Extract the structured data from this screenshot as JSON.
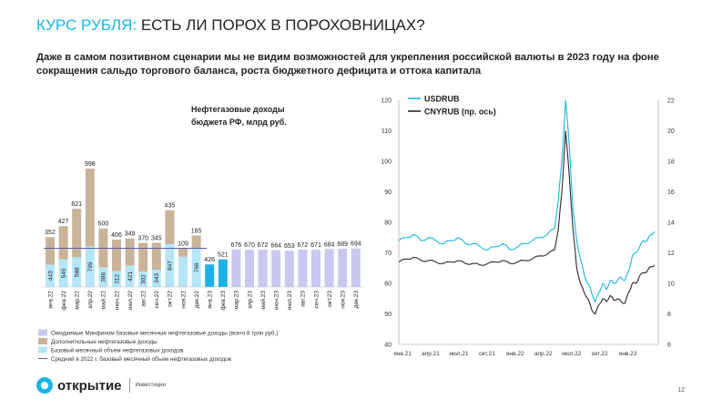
{
  "header": {
    "title_accent": "КУРС РУБЛЯ:",
    "title_rest": " ЕСТЬ ЛИ ПОРОХ В ПОРОХОВНИЦАХ?",
    "subtitle": "Даже в самом позитивном сценарии мы не видим возможностей для укрепления российской валюты в 2023 году на фоне сокращения сальдо торгового баланса, роста бюджетного дефицита и оттока капитала"
  },
  "footer": {
    "brand": "открытие",
    "brand_sub": "Инвестиции",
    "page_number": "12"
  },
  "colors": {
    "base": "#b5e6f8",
    "extra": "#c9b49a",
    "highlight": "#1cb1e4",
    "forecast": "#c8c8f0",
    "avg_line": "#5560a8",
    "usd": "#19b4e6",
    "cny": "#2a2a2a",
    "accent": "#19b4e6"
  },
  "chart_data": [
    {
      "type": "bar",
      "title": "Нефтегазовые доходы бюджета РФ, млрд руб.",
      "categories": [
        "янв.22",
        "фев.22",
        "мар.22",
        "апр.22",
        "май.22",
        "июн.22",
        "июл.22",
        "авг.22",
        "сен.22",
        "окт.22",
        "ноя.22",
        "дек.22",
        "янв.23",
        "фев.23",
        "мар.23",
        "апр.23",
        "май.23",
        "июн.23",
        "июл.23",
        "авг.23",
        "сен.23",
        "окт.23",
        "ноя.23",
        "дек.23"
      ],
      "series": [
        {
          "name": "Базовый месячный объем нефтегазовых доходов",
          "values": [
            443,
            545,
            588,
            799,
            386,
            312,
            421,
            302,
            343,
            847,
            null,
            766,
            null,
            null,
            null,
            null,
            null,
            null,
            null,
            null,
            null,
            null,
            null,
            null
          ],
          "labels": [
            "443",
            "545",
            "588",
            "799",
            "386",
            "312",
            "421",
            "302",
            "343",
            "847",
            "",
            "766",
            "",
            "",
            "",
            "",
            "",
            "",
            "",
            "",
            "",
            "",
            "",
            ""
          ]
        },
        {
          "name": "Дополнительные нефтегазовые доходы",
          "values": [
            null,
            null,
            null,
            null,
            null,
            null,
            null,
            null,
            null,
            null,
            null,
            null,
            null,
            null,
            null,
            null,
            null,
            null,
            null,
            null,
            null,
            null,
            null,
            null
          ]
        },
        {
          "name": "Ожидаемые Минфином базовые месячные нефтегазовые доходы (всего 8 трлн руб.)",
          "values": [
            null,
            null,
            null,
            null,
            null,
            null,
            null,
            null,
            null,
            null,
            null,
            null,
            null,
            null,
            676,
            670,
            672,
            664,
            653,
            672,
            671,
            684,
            689,
            694
          ]
        },
        {
          "name": "Средний в 2022 г. базовый месячный объем нефтегазовых доходов"
        }
      ],
      "totals": [
        352,
        427,
        621,
        998,
        500,
        406,
        349,
        370,
        345,
        435,
        109,
        165,
        426,
        521,
        676,
        670,
        672,
        664,
        653,
        672,
        671,
        684,
        689,
        694
      ],
      "total_labels": [
        "352",
        "427",
        "621",
        "998",
        "500",
        "406",
        "349",
        "370",
        "345",
        "435",
        "109",
        "165",
        "426",
        "521",
        "676",
        "670",
        "672",
        "664",
        "653",
        "672",
        "671",
        "684",
        "689",
        "694"
      ],
      "base_values": [
        443,
        545,
        588,
        799,
        386,
        312,
        421,
        302,
        343,
        847,
        600,
        766,
        426,
        521,
        676,
        670,
        672,
        664,
        653,
        672,
        671,
        684,
        689,
        694
      ],
      "bar_kind": [
        "actual",
        "actual",
        "actual",
        "actual",
        "actual",
        "actual",
        "actual",
        "actual",
        "actual",
        "actual",
        "actual",
        "actual",
        "highlight",
        "highlight",
        "forecast",
        "forecast",
        "forecast",
        "forecast",
        "forecast",
        "forecast",
        "forecast",
        "forecast",
        "forecast",
        "forecast"
      ],
      "avg_line_value": 576,
      "ylim": [
        0,
        1500
      ],
      "legend": [
        "Ожидаемые Минфином базовые месячные нефтегазовые доходы (всего 8 трлн руб.)",
        "Дополнительные нефтегазовые доходы",
        "Базовый месячный объем нефтегазовых доходов",
        "Средний в 2022 г. базовый месячный объем нефтегазовых доходов"
      ]
    },
    {
      "type": "line",
      "x_ticks": [
        "янв.21",
        "апр.21",
        "июл.21",
        "окт.21",
        "янв.22",
        "апр.22",
        "июл.22",
        "окт.22",
        "янв.23"
      ],
      "ylim": [
        40,
        120
      ],
      "y_ticks": [
        "40",
        "50",
        "60",
        "70",
        "80",
        "90",
        "100",
        "110",
        "120"
      ],
      "y2lim": [
        6,
        22
      ],
      "y2_ticks": [
        "6",
        "8",
        "10",
        "12",
        "14",
        "16",
        "18",
        "20",
        "22"
      ],
      "series": [
        {
          "name": "USDRUB",
          "axis": "left",
          "points": [
            [
              0,
              74
            ],
            [
              4,
              75
            ],
            [
              8,
              76
            ],
            [
              12,
              74
            ],
            [
              16,
              75
            ],
            [
              20,
              74
            ],
            [
              24,
              73
            ],
            [
              28,
              74
            ],
            [
              32,
              75
            ],
            [
              36,
              73
            ],
            [
              40,
              73
            ],
            [
              44,
              72
            ],
            [
              48,
              71
            ],
            [
              52,
              72
            ],
            [
              56,
              73
            ],
            [
              60,
              71
            ],
            [
              64,
              72
            ],
            [
              68,
              73
            ],
            [
              72,
              74
            ],
            [
              76,
              75
            ],
            [
              80,
              76
            ],
            [
              84,
              78
            ],
            [
              86,
              87
            ],
            [
              88,
              100
            ],
            [
              90,
              120
            ],
            [
              92,
              105
            ],
            [
              94,
              84
            ],
            [
              96,
              74
            ],
            [
              98,
              68
            ],
            [
              100,
              63
            ],
            [
              102,
              60
            ],
            [
              104,
              57
            ],
            [
              106,
              54
            ],
            [
              108,
              57
            ],
            [
              110,
              60
            ],
            [
              112,
              58
            ],
            [
              114,
              61
            ],
            [
              116,
              60
            ],
            [
              118,
              61
            ],
            [
              120,
              62
            ],
            [
              122,
              61
            ],
            [
              124,
              64
            ],
            [
              126,
              69
            ],
            [
              128,
              70
            ],
            [
              130,
              72
            ],
            [
              132,
              74
            ],
            [
              134,
              74
            ],
            [
              136,
              76
            ],
            [
              138,
              77
            ]
          ]
        },
        {
          "name": "CNYRUB (пр. ось)",
          "axis": "right",
          "points": [
            [
              0,
              11.4
            ],
            [
              4,
              11.6
            ],
            [
              8,
              11.7
            ],
            [
              12,
              11.5
            ],
            [
              16,
              11.5
            ],
            [
              20,
              11.4
            ],
            [
              24,
              11.3
            ],
            [
              28,
              11.4
            ],
            [
              32,
              11.5
            ],
            [
              36,
              11.3
            ],
            [
              40,
              11.3
            ],
            [
              44,
              11.2
            ],
            [
              48,
              11.3
            ],
            [
              52,
              11.4
            ],
            [
              56,
              11.5
            ],
            [
              60,
              11.3
            ],
            [
              64,
              11.4
            ],
            [
              68,
              11.5
            ],
            [
              72,
              11.6
            ],
            [
              76,
              11.8
            ],
            [
              80,
              11.9
            ],
            [
              84,
              12.2
            ],
            [
              86,
              13.5
            ],
            [
              88,
              16.0
            ],
            [
              90,
              20.0
            ],
            [
              92,
              17.0
            ],
            [
              94,
              13.5
            ],
            [
              96,
              11.0
            ],
            [
              98,
              10.0
            ],
            [
              100,
              9.4
            ],
            [
              102,
              9.0
            ],
            [
              104,
              8.3
            ],
            [
              106,
              8.0
            ],
            [
              108,
              8.6
            ],
            [
              110,
              9.0
            ],
            [
              112,
              8.8
            ],
            [
              114,
              9.2
            ],
            [
              116,
              8.9
            ],
            [
              118,
              9.0
            ],
            [
              120,
              8.8
            ],
            [
              122,
              8.7
            ],
            [
              124,
              9.4
            ],
            [
              126,
              10.0
            ],
            [
              128,
              10.0
            ],
            [
              130,
              10.5
            ],
            [
              132,
              10.7
            ],
            [
              134,
              10.8
            ],
            [
              136,
              11.1
            ],
            [
              138,
              11.2
            ]
          ]
        }
      ],
      "x_domain": [
        0,
        140
      ]
    }
  ]
}
